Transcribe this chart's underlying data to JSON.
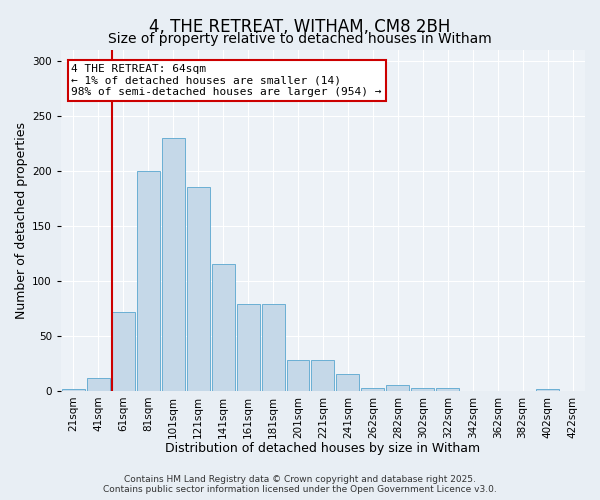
{
  "title": "4, THE RETREAT, WITHAM, CM8 2BH",
  "subtitle": "Size of property relative to detached houses in Witham",
  "xlabel": "Distribution of detached houses by size in Witham",
  "ylabel": "Number of detached properties",
  "categories": [
    "21sqm",
    "41sqm",
    "61sqm",
    "81sqm",
    "101sqm",
    "121sqm",
    "141sqm",
    "161sqm",
    "181sqm",
    "201sqm",
    "221sqm",
    "241sqm",
    "262sqm",
    "282sqm",
    "302sqm",
    "322sqm",
    "342sqm",
    "362sqm",
    "382sqm",
    "402sqm",
    "422sqm"
  ],
  "values": [
    2,
    12,
    72,
    200,
    230,
    185,
    115,
    79,
    79,
    28,
    28,
    15,
    3,
    5,
    3,
    3,
    0,
    0,
    0,
    2,
    0
  ],
  "bar_color": "#c5d8e8",
  "bar_edge_color": "#6aafd4",
  "vline_color": "#cc0000",
  "vline_bar_index": 2,
  "ylim": [
    0,
    310
  ],
  "yticks": [
    0,
    50,
    100,
    150,
    200,
    250,
    300
  ],
  "annotation_title": "4 THE RETREAT: 64sqm",
  "annotation_line1": "← 1% of detached houses are smaller (14)",
  "annotation_line2": "98% of semi-detached houses are larger (954) →",
  "annotation_box_color": "#ffffff",
  "annotation_box_edge": "#cc0000",
  "background_color": "#e8eef4",
  "plot_bg_color": "#edf2f7",
  "footer1": "Contains HM Land Registry data © Crown copyright and database right 2025.",
  "footer2": "Contains public sector information licensed under the Open Government Licence v3.0.",
  "title_fontsize": 12,
  "subtitle_fontsize": 10,
  "axis_label_fontsize": 9,
  "tick_fontsize": 7.5,
  "annotation_fontsize": 8,
  "footer_fontsize": 6.5
}
